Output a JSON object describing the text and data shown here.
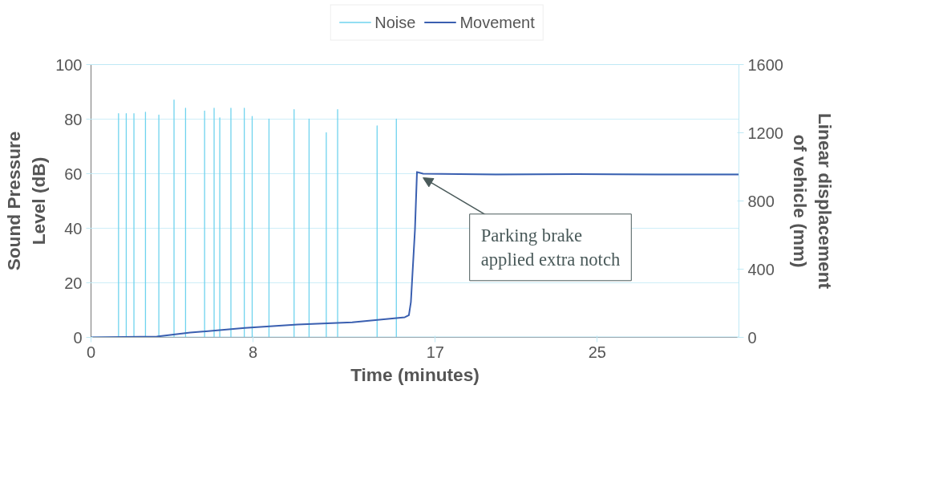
{
  "chart_data": {
    "type": "line",
    "xlabel": "Time (minutes)",
    "ylabel": "Sound Pressure\nLevel (dB)",
    "y2label": "Linear displacement\nof vehicle (mm)",
    "xlim": [
      0,
      32
    ],
    "xticks": [
      0,
      8,
      17,
      25
    ],
    "ylim": [
      0,
      100
    ],
    "yticks": [
      0,
      20,
      40,
      60,
      80,
      100
    ],
    "y2lim": [
      0,
      1600
    ],
    "y2ticks": [
      0,
      400,
      800,
      1200,
      1600
    ],
    "grid": "y",
    "legend": "top",
    "marker": "none",
    "line_style": "solid",
    "series": [
      {
        "name": "Noise",
        "color": "#6fd3ee",
        "x": [
          0,
          1.36,
          1.36,
          1.36,
          1.74,
          1.74,
          1.74,
          2.12,
          2.12,
          2.12,
          2.69,
          2.69,
          2.69,
          3.35,
          3.35,
          3.35,
          4.1,
          4.1,
          4.1,
          4.67,
          4.67,
          4.67,
          5.61,
          5.61,
          5.61,
          6.08,
          6.08,
          6.08,
          6.36,
          6.36,
          6.36,
          6.91,
          6.91,
          6.91,
          7.57,
          7.57,
          7.57,
          7.96,
          7.96,
          7.96,
          8.79,
          8.79,
          8.79,
          10.03,
          10.03,
          10.03,
          10.77,
          10.77,
          10.77,
          11.62,
          11.62,
          11.62,
          12.18,
          12.18,
          12.18,
          14.13,
          14.13,
          14.13,
          15.08,
          15.08,
          15.08,
          32
        ],
        "values": [
          0,
          0,
          82,
          0,
          0,
          82,
          0,
          0,
          82,
          0,
          0,
          82.5,
          0,
          0,
          81.5,
          0,
          0,
          87,
          0,
          0,
          84,
          0,
          0,
          83,
          0,
          0,
          84,
          0,
          0,
          80.5,
          0,
          0,
          84,
          0,
          0,
          84,
          0,
          0,
          81,
          0,
          0,
          80,
          0,
          0,
          83.5,
          0,
          0,
          80,
          0,
          0,
          75,
          0,
          0,
          83.5,
          0,
          0,
          77.5,
          0,
          0,
          80,
          0,
          0
        ]
      },
      {
        "name": "Movement",
        "color": "#3a5fb0",
        "axis": "y2",
        "x": [
          0,
          3.25,
          4.9,
          7.6,
          10.2,
          12.9,
          15.5,
          15.7,
          15.8,
          16.0,
          16.1,
          16.4,
          20,
          24,
          28,
          32
        ],
        "values": [
          0,
          5,
          28,
          55,
          75,
          88,
          118,
          130,
          208,
          632,
          970,
          960,
          955,
          958,
          955,
          955
        ]
      }
    ],
    "annotations": [
      {
        "text": "Parking brake\napplied extra notch",
        "x": 16.4,
        "y": 60
      }
    ]
  }
}
